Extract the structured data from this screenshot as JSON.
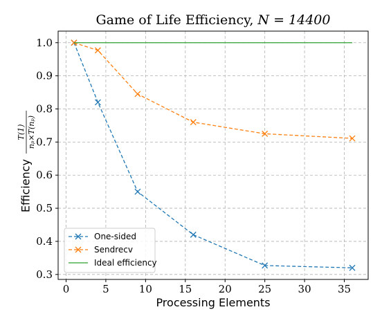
{
  "chart_data": {
    "type": "line",
    "title_text": "Game of Life Efficiency, ",
    "title_math": "N = 14400",
    "xlabel": "Processing Elements",
    "ylabel_text": "Efficiency",
    "ylabel_numerator": "T(1)",
    "ylabel_denominator": "nₚ×T(nₚ)",
    "xlim": [
      -1,
      38
    ],
    "ylim": [
      0.285,
      1.035
    ],
    "xticks": [
      0,
      5,
      10,
      15,
      20,
      25,
      30,
      35
    ],
    "xtick_labels": [
      "0",
      "5",
      "10",
      "15",
      "20",
      "25",
      "30",
      "35"
    ],
    "yticks": [
      0.3,
      0.4,
      0.5,
      0.6,
      0.7,
      0.8,
      0.9,
      1.0
    ],
    "ytick_labels": [
      "0.3",
      "0.4",
      "0.5",
      "0.6",
      "0.7",
      "0.8",
      "0.9",
      "1.0"
    ],
    "grid": true,
    "legend_position": "bottom-left",
    "series": [
      {
        "name": "One-sided",
        "color": "#1f77b4",
        "style": "dashed",
        "marker": "x",
        "x": [
          1,
          4,
          9,
          16,
          25,
          36
        ],
        "values": [
          1.0,
          0.82,
          0.55,
          0.42,
          0.327,
          0.32
        ]
      },
      {
        "name": "Sendrecv",
        "color": "#ff7f0e",
        "style": "dashed",
        "marker": "x",
        "x": [
          1,
          4,
          9,
          16,
          25,
          36
        ],
        "values": [
          1.0,
          0.977,
          0.845,
          0.76,
          0.725,
          0.711
        ]
      },
      {
        "name": "Ideal efficiency",
        "color": "#2ca02c",
        "style": "solid",
        "marker": "none",
        "x": [
          1,
          36
        ],
        "values": [
          1.0,
          1.0
        ]
      }
    ]
  }
}
